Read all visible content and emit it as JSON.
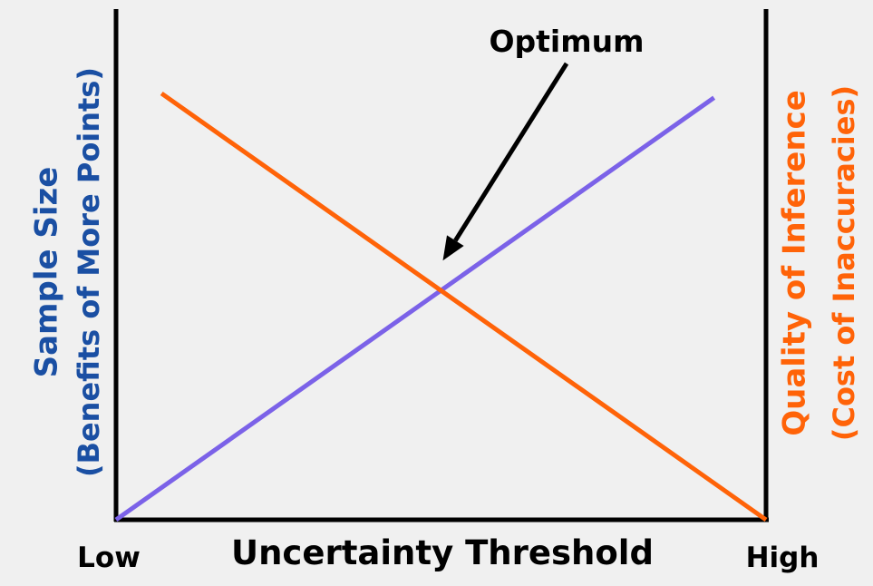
{
  "chart_data": {
    "type": "line",
    "title": "",
    "xlabel": "Uncertainty Threshold",
    "x_tick_labels": {
      "low": "Low",
      "high": "High"
    },
    "ylabel_left": {
      "line1": "Sample Size",
      "line2": "(Benefits of More Points)"
    },
    "ylabel_right": {
      "line1": "Quality of Inference",
      "line2": "(Cost of Inaccuracies)"
    },
    "xlim": [
      0,
      1
    ],
    "ylim": [
      0,
      1
    ],
    "grid": false,
    "series": [
      {
        "name": "Sample Size",
        "color": "#7b62e8",
        "x": [
          0.0,
          0.92
        ],
        "y": [
          0.0,
          0.99
        ]
      },
      {
        "name": "Quality of Inference",
        "color": "#ff6308",
        "x": [
          0.07,
          1.0
        ],
        "y": [
          1.0,
          0.0
        ]
      }
    ],
    "annotation": {
      "text": "Optimum",
      "target_x": 0.5,
      "target_y": 0.54
    },
    "colors": {
      "left_axis_label": "#1a4fa3",
      "right_axis_label": "#ff6308",
      "axes": "#000000"
    }
  }
}
